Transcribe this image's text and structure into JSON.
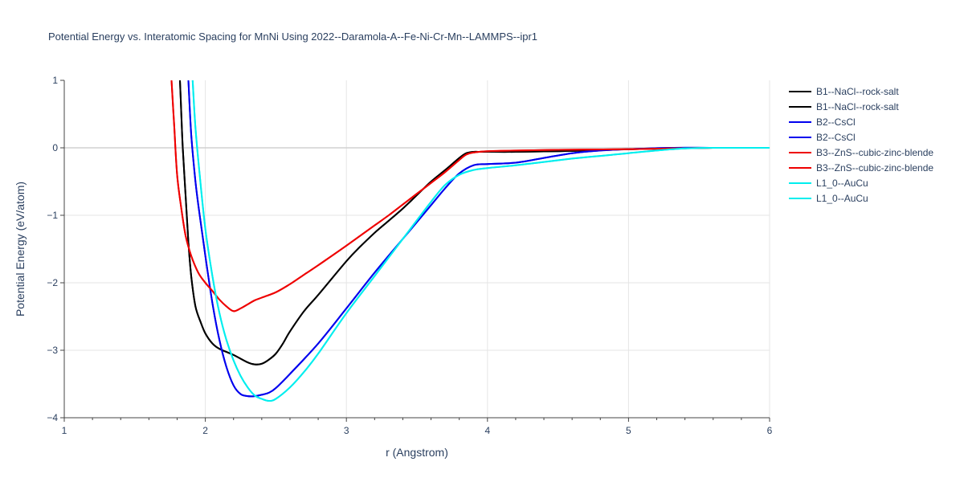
{
  "chart_data": {
    "type": "line",
    "title": "Potential Energy vs. Interatomic Spacing for MnNi Using 2022--Daramola-A--Fe-Ni-Cr-Mn--LAMMPS--ipr1",
    "xlabel": "r (Angstrom)",
    "ylabel": "Potential Energy (eV/atom)",
    "xlim": [
      1,
      6
    ],
    "ylim": [
      -4,
      1
    ],
    "xticks": [
      "1",
      "2",
      "3",
      "4",
      "5",
      "6"
    ],
    "yticks": [
      "1",
      "0",
      "−1",
      "−2",
      "−3",
      "−4"
    ],
    "grid": true,
    "legend_position": "top-right",
    "series": [
      {
        "name": "B1--NaCl--rock-salt",
        "color": "#000000",
        "x": [
          1.82,
          1.83,
          1.84,
          1.86,
          1.88,
          1.9,
          1.93,
          1.97,
          2.0,
          2.05,
          2.1,
          2.2,
          2.3,
          2.35,
          2.4,
          2.45,
          2.5,
          2.55,
          2.6,
          2.7,
          2.8,
          3.0,
          3.1,
          3.2,
          3.3,
          3.4,
          3.5,
          3.6,
          3.7,
          3.8,
          3.85,
          3.9,
          3.95,
          4.0,
          4.2,
          4.5,
          4.7,
          5.0,
          5.3,
          5.6,
          6.0
        ],
        "y": [
          1.0,
          0.5,
          0.0,
          -0.7,
          -1.4,
          -1.9,
          -2.35,
          -2.6,
          -2.75,
          -2.9,
          -2.98,
          -3.07,
          -3.18,
          -3.21,
          -3.2,
          -3.14,
          -3.05,
          -2.9,
          -2.72,
          -2.42,
          -2.18,
          -1.68,
          -1.46,
          -1.26,
          -1.08,
          -0.9,
          -0.7,
          -0.5,
          -0.33,
          -0.15,
          -0.08,
          -0.06,
          -0.06,
          -0.06,
          -0.06,
          -0.05,
          -0.04,
          -0.02,
          -0.01,
          0.0,
          0.0
        ]
      },
      {
        "name": "B1--NaCl--rock-salt",
        "color": "#000000",
        "x": [
          1.82,
          1.83,
          1.84,
          1.86,
          1.88,
          1.9,
          1.93,
          1.97,
          2.0,
          2.05,
          2.1,
          2.2,
          2.3,
          2.35,
          2.4,
          2.45,
          2.5,
          2.55,
          2.6,
          2.7,
          2.8,
          3.0,
          3.1,
          3.2,
          3.3,
          3.4,
          3.5,
          3.6,
          3.7,
          3.8,
          3.85,
          3.9,
          3.95,
          4.0,
          4.2,
          4.5,
          4.7,
          5.0,
          5.3,
          5.6,
          6.0
        ],
        "y": [
          1.0,
          0.5,
          0.0,
          -0.7,
          -1.4,
          -1.9,
          -2.35,
          -2.6,
          -2.75,
          -2.9,
          -2.98,
          -3.07,
          -3.18,
          -3.21,
          -3.2,
          -3.14,
          -3.05,
          -2.9,
          -2.72,
          -2.42,
          -2.18,
          -1.68,
          -1.46,
          -1.26,
          -1.08,
          -0.9,
          -0.7,
          -0.5,
          -0.33,
          -0.15,
          -0.08,
          -0.06,
          -0.06,
          -0.06,
          -0.06,
          -0.05,
          -0.04,
          -0.02,
          -0.01,
          0.0,
          0.0
        ]
      },
      {
        "name": "B2--CsCl",
        "color": "#0000ee",
        "x": [
          1.88,
          1.9,
          1.93,
          1.96,
          2.0,
          2.05,
          2.1,
          2.15,
          2.2,
          2.25,
          2.3,
          2.35,
          2.4,
          2.45,
          2.5,
          2.6,
          2.8,
          3.0,
          3.2,
          3.4,
          3.6,
          3.7,
          3.8,
          3.9,
          4.0,
          4.2,
          4.4,
          4.6,
          4.8,
          5.0,
          5.3,
          5.6,
          6.0
        ],
        "y": [
          1.0,
          0.2,
          -0.5,
          -1.0,
          -1.6,
          -2.3,
          -2.85,
          -3.25,
          -3.52,
          -3.65,
          -3.68,
          -3.68,
          -3.66,
          -3.63,
          -3.56,
          -3.35,
          -2.9,
          -2.38,
          -1.85,
          -1.35,
          -0.85,
          -0.6,
          -0.38,
          -0.26,
          -0.24,
          -0.22,
          -0.15,
          -0.08,
          -0.04,
          -0.02,
          0.0,
          0.0,
          0.0
        ]
      },
      {
        "name": "B2--CsCl",
        "color": "#0000ee",
        "x": [
          1.88,
          1.9,
          1.93,
          1.96,
          2.0,
          2.05,
          2.1,
          2.15,
          2.2,
          2.25,
          2.3,
          2.35,
          2.4,
          2.45,
          2.5,
          2.6,
          2.8,
          3.0,
          3.2,
          3.4,
          3.6,
          3.7,
          3.8,
          3.9,
          4.0,
          4.2,
          4.4,
          4.6,
          4.8,
          5.0,
          5.3,
          5.6,
          6.0
        ],
        "y": [
          1.0,
          0.2,
          -0.5,
          -1.0,
          -1.6,
          -2.3,
          -2.85,
          -3.25,
          -3.52,
          -3.65,
          -3.68,
          -3.68,
          -3.66,
          -3.63,
          -3.56,
          -3.35,
          -2.9,
          -2.38,
          -1.85,
          -1.35,
          -0.85,
          -0.6,
          -0.38,
          -0.26,
          -0.24,
          -0.22,
          -0.15,
          -0.08,
          -0.04,
          -0.02,
          0.0,
          0.0,
          0.0
        ]
      },
      {
        "name": "B3--ZnS--cubic-zinc-blende",
        "color": "#ee0000",
        "x": [
          1.76,
          1.78,
          1.8,
          1.83,
          1.86,
          1.9,
          1.95,
          2.0,
          2.05,
          2.1,
          2.15,
          2.2,
          2.25,
          2.3,
          2.35,
          2.4,
          2.5,
          2.6,
          2.7,
          2.8,
          3.0,
          3.2,
          3.3,
          3.4,
          3.5,
          3.6,
          3.7,
          3.8,
          3.85,
          3.9,
          4.0,
          4.2,
          4.5,
          5.0,
          5.3,
          5.6,
          6.0
        ],
        "y": [
          1.0,
          0.3,
          -0.4,
          -0.9,
          -1.3,
          -1.6,
          -1.85,
          -2.0,
          -2.12,
          -2.25,
          -2.35,
          -2.42,
          -2.38,
          -2.32,
          -2.26,
          -2.22,
          -2.14,
          -2.02,
          -1.88,
          -1.74,
          -1.45,
          -1.15,
          -1.0,
          -0.84,
          -0.68,
          -0.52,
          -0.36,
          -0.18,
          -0.1,
          -0.07,
          -0.05,
          -0.04,
          -0.03,
          -0.02,
          -0.01,
          0.0,
          0.0
        ]
      },
      {
        "name": "B3--ZnS--cubic-zinc-blende",
        "color": "#ee0000",
        "x": [
          1.76,
          1.78,
          1.8,
          1.83,
          1.86,
          1.9,
          1.95,
          2.0,
          2.05,
          2.1,
          2.15,
          2.2,
          2.25,
          2.3,
          2.35,
          2.4,
          2.5,
          2.6,
          2.7,
          2.8,
          3.0,
          3.2,
          3.3,
          3.4,
          3.5,
          3.6,
          3.7,
          3.8,
          3.85,
          3.9,
          4.0,
          4.2,
          4.5,
          5.0,
          5.3,
          5.6,
          6.0
        ],
        "y": [
          1.0,
          0.3,
          -0.4,
          -0.9,
          -1.3,
          -1.6,
          -1.85,
          -2.0,
          -2.12,
          -2.25,
          -2.35,
          -2.42,
          -2.38,
          -2.32,
          -2.26,
          -2.22,
          -2.14,
          -2.02,
          -1.88,
          -1.74,
          -1.45,
          -1.15,
          -1.0,
          -0.84,
          -0.68,
          -0.52,
          -0.36,
          -0.18,
          -0.1,
          -0.07,
          -0.05,
          -0.04,
          -0.03,
          -0.02,
          -0.01,
          0.0,
          0.0
        ]
      },
      {
        "name": "L1_0--AuCu",
        "color": "#00eeee",
        "x": [
          1.91,
          1.93,
          1.96,
          2.0,
          2.05,
          2.1,
          2.15,
          2.2,
          2.25,
          2.3,
          2.35,
          2.4,
          2.45,
          2.5,
          2.6,
          2.7,
          2.8,
          3.0,
          3.2,
          3.4,
          3.6,
          3.7,
          3.8,
          3.9,
          4.0,
          4.2,
          4.4,
          4.6,
          4.8,
          5.0,
          5.2,
          5.4,
          5.6,
          6.0
        ],
        "y": [
          1.0,
          0.3,
          -0.4,
          -1.2,
          -1.9,
          -2.45,
          -2.85,
          -3.15,
          -3.38,
          -3.55,
          -3.67,
          -3.72,
          -3.75,
          -3.72,
          -3.55,
          -3.32,
          -3.05,
          -2.45,
          -1.9,
          -1.35,
          -0.8,
          -0.55,
          -0.4,
          -0.33,
          -0.3,
          -0.26,
          -0.21,
          -0.16,
          -0.12,
          -0.08,
          -0.04,
          -0.01,
          0.0,
          0.0
        ]
      },
      {
        "name": "L1_0--AuCu",
        "color": "#00eeee",
        "x": [
          1.91,
          1.93,
          1.96,
          2.0,
          2.05,
          2.1,
          2.15,
          2.2,
          2.25,
          2.3,
          2.35,
          2.4,
          2.45,
          2.5,
          2.6,
          2.7,
          2.8,
          3.0,
          3.2,
          3.4,
          3.6,
          3.7,
          3.8,
          3.9,
          4.0,
          4.2,
          4.4,
          4.6,
          4.8,
          5.0,
          5.2,
          5.4,
          5.6,
          6.0
        ],
        "y": [
          1.0,
          0.3,
          -0.4,
          -1.2,
          -1.9,
          -2.45,
          -2.85,
          -3.15,
          -3.38,
          -3.55,
          -3.67,
          -3.72,
          -3.75,
          -3.72,
          -3.55,
          -3.32,
          -3.05,
          -2.45,
          -1.9,
          -1.35,
          -0.8,
          -0.55,
          -0.4,
          -0.33,
          -0.3,
          -0.26,
          -0.21,
          -0.16,
          -0.12,
          -0.08,
          -0.04,
          -0.01,
          0.0,
          0.0
        ]
      }
    ]
  }
}
